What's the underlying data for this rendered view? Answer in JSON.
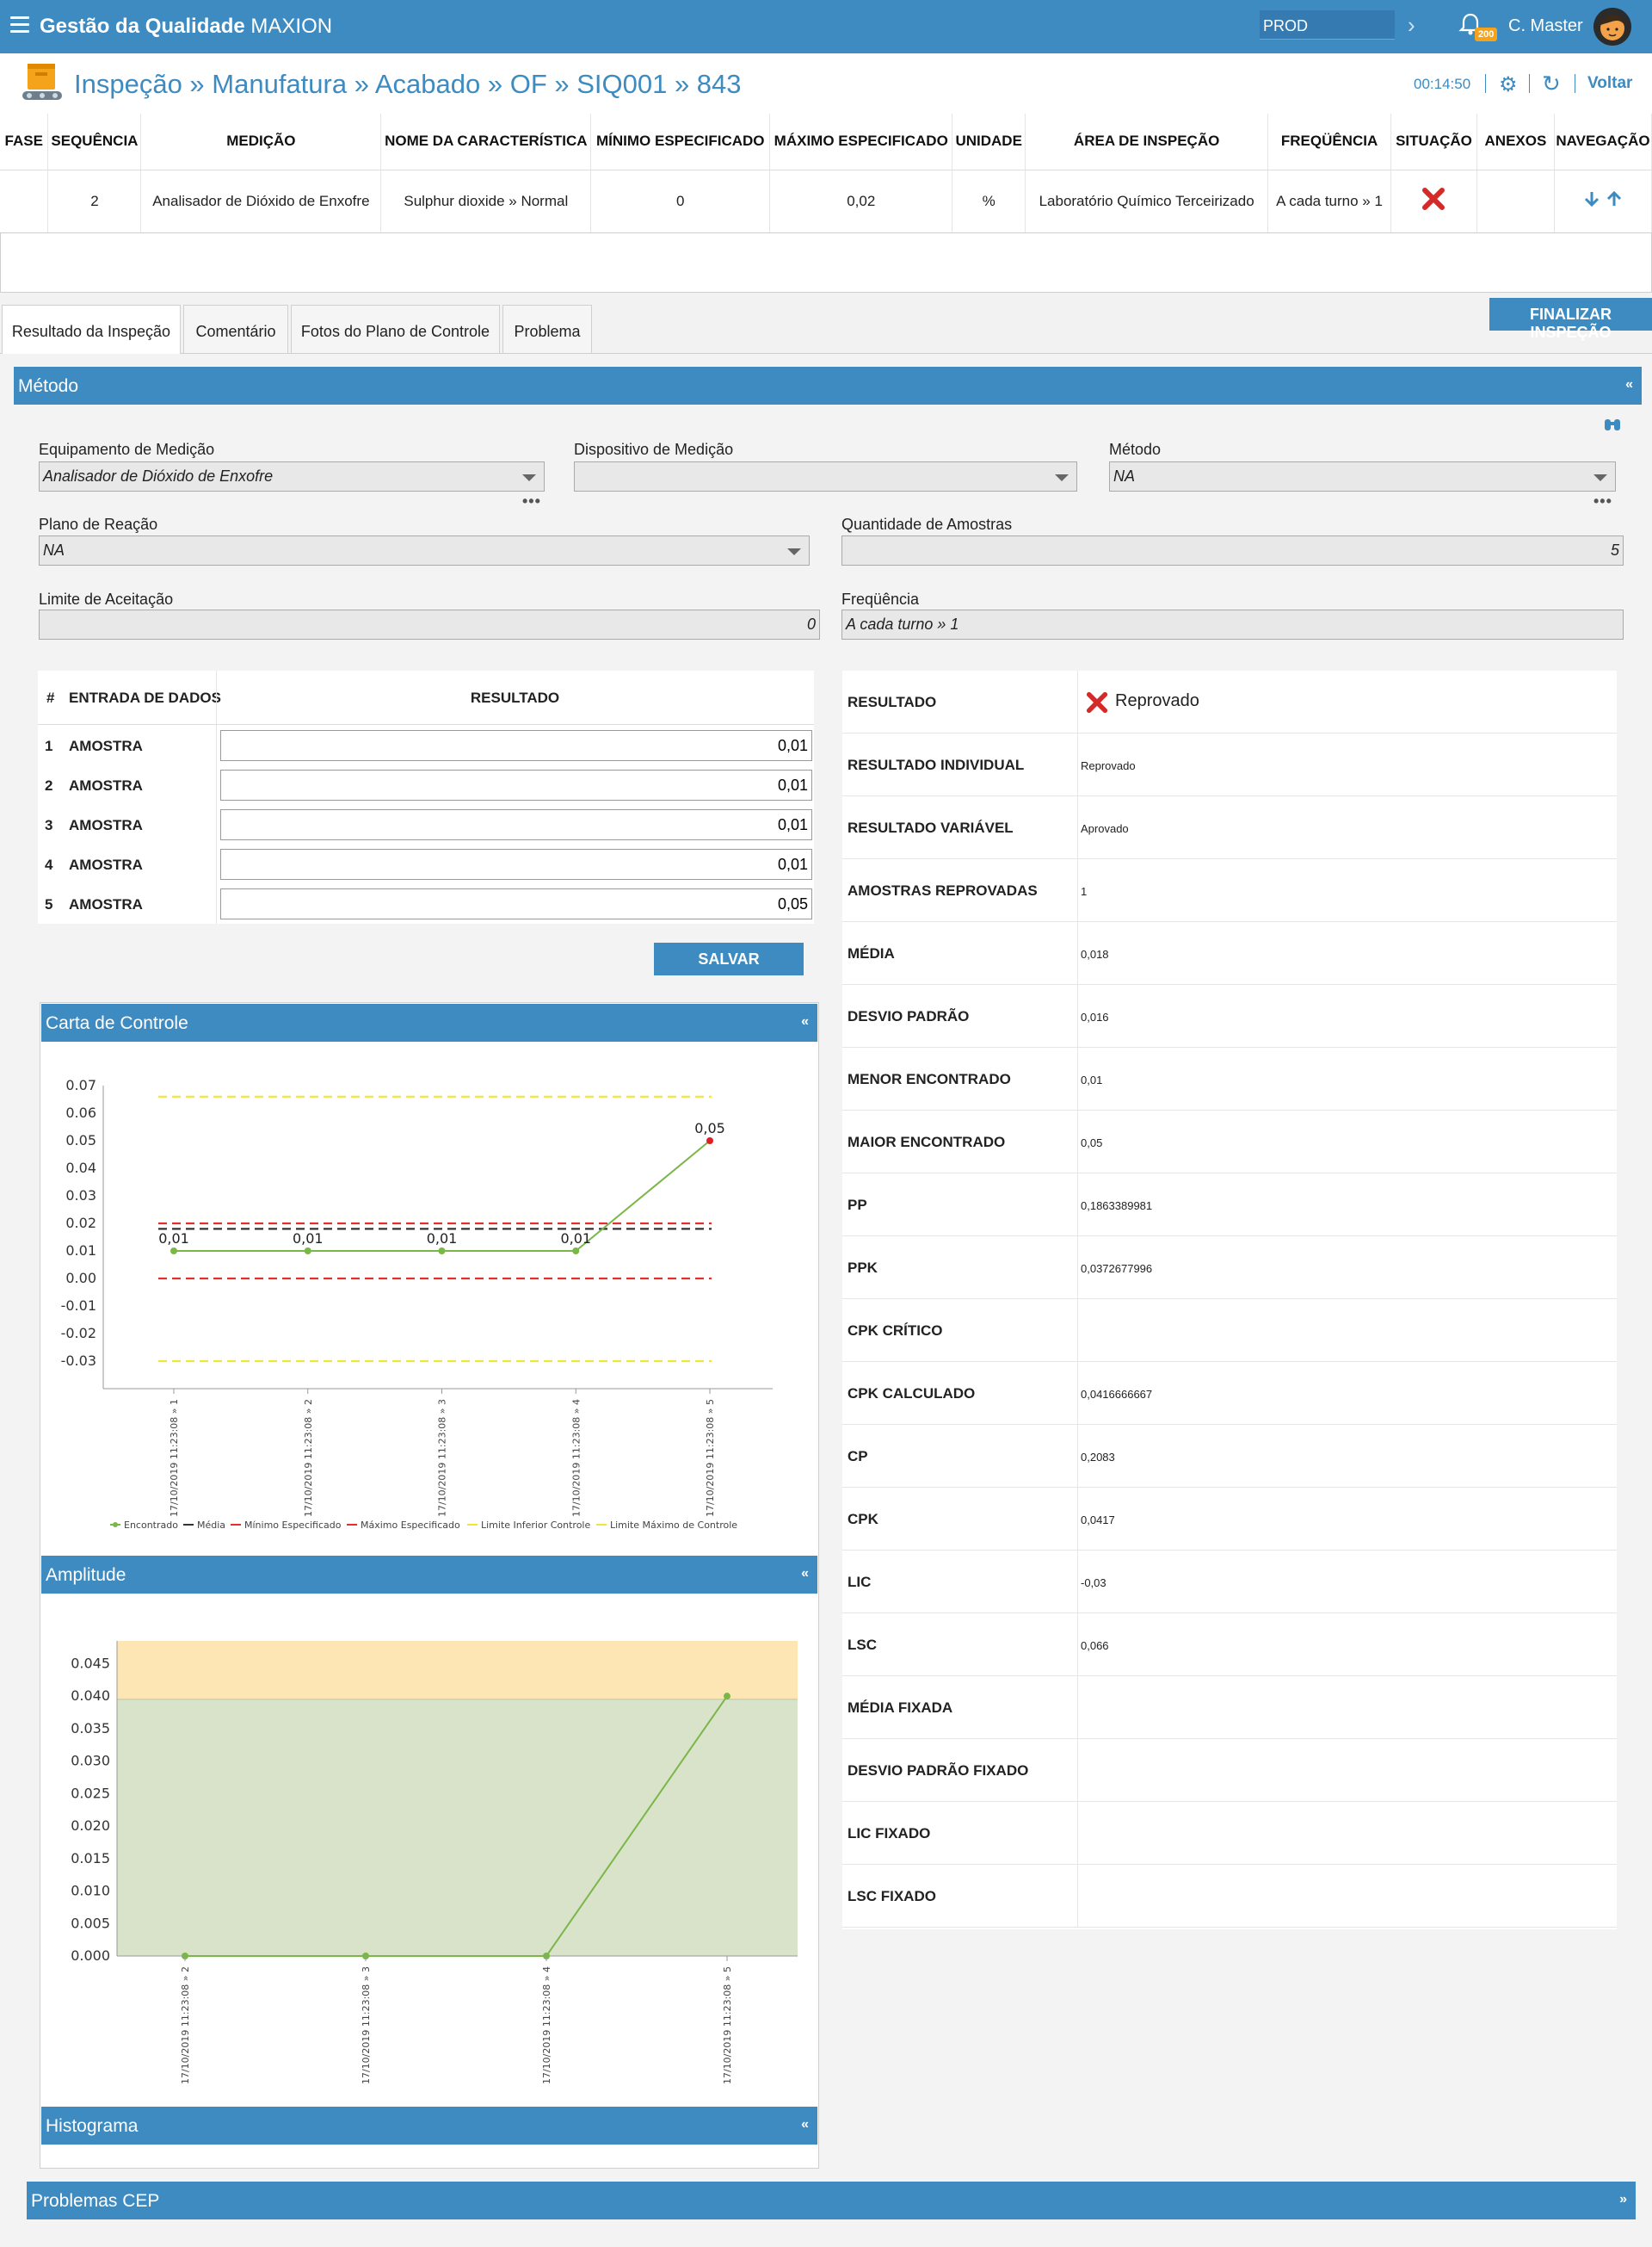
{
  "app": {
    "title_bold": "Gestão da Qualidade",
    "title_light": "MAXION",
    "environment": "PROD",
    "notifications": "200",
    "user": "C. Master"
  },
  "breadcrumb": {
    "text": "Inspeção » Manufatura » Acabado » OF » SIQ001 » 843",
    "timer": "00:14:50",
    "back": "Voltar"
  },
  "spec_table": {
    "headers": [
      "FASE",
      "SEQUÊNCIA",
      "MEDIÇÃO",
      "NOME DA CARACTERÍSTICA",
      "MÍNIMO ESPECIFICADO",
      "MÁXIMO ESPECIFICADO",
      "UNIDADE",
      "ÁREA DE INSPEÇÃO",
      "FREQÜÊNCIA",
      "SITUAÇÃO",
      "ANEXOS",
      "NAVEGAÇÃO"
    ],
    "row": {
      "fase": "",
      "sequencia": "2",
      "medicao": "Analisador de Dióxido de Enxofre",
      "caracteristica": "Sulphur dioxide » Normal",
      "minimo": "0",
      "maximo": "0,02",
      "unidade": "%",
      "area": "Laboratório Químico Terceirizado",
      "frequencia": "A cada turno » 1",
      "anexos": ""
    }
  },
  "tabs": [
    "Resultado da Inspeção",
    "Comentário",
    "Fotos do Plano de Controle",
    "Problema"
  ],
  "finalize_button": "FINALIZAR INSPEÇÃO",
  "metodo": {
    "title": "Método",
    "equipamento": {
      "label": "Equipamento de Medição",
      "value": "Analisador de Dióxido de Enxofre"
    },
    "dispositivo": {
      "label": "Dispositivo de Medição",
      "value": ""
    },
    "metodo": {
      "label": "Método",
      "value": "NA"
    },
    "plano_reacao": {
      "label": "Plano de Reação",
      "value": "NA"
    },
    "quantidade": {
      "label": "Quantidade de Amostras",
      "value": "5"
    },
    "limite": {
      "label": "Limite de Aceitação",
      "value": "0"
    },
    "frequencia": {
      "label": "Freqüência",
      "value": "A cada turno » 1"
    }
  },
  "entry": {
    "headers": {
      "num": "#",
      "entrada": "ENTRADA DE DADOS",
      "resultado": "RESULTADO"
    },
    "rows": [
      {
        "n": "1",
        "label": "AMOSTRA",
        "value": "0,01"
      },
      {
        "n": "2",
        "label": "AMOSTRA",
        "value": "0,01"
      },
      {
        "n": "3",
        "label": "AMOSTRA",
        "value": "0,01"
      },
      {
        "n": "4",
        "label": "AMOSTRA",
        "value": "0,01"
      },
      {
        "n": "5",
        "label": "AMOSTRA",
        "value": "0,05"
      }
    ],
    "save": "SALVAR"
  },
  "results": {
    "resultado": {
      "label": "RESULTADO",
      "value": "Reprovado"
    },
    "rows": [
      {
        "k": "RESULTADO INDIVIDUAL",
        "v": "Reprovado"
      },
      {
        "k": "RESULTADO VARIÁVEL",
        "v": "Aprovado"
      },
      {
        "k": "AMOSTRAS REPROVADAS",
        "v": "1"
      },
      {
        "k": "MÉDIA",
        "v": "0,018"
      },
      {
        "k": "DESVIO PADRÃO",
        "v": "0,016"
      },
      {
        "k": "MENOR ENCONTRADO",
        "v": "0,01"
      },
      {
        "k": "MAIOR ENCONTRADO",
        "v": "0,05"
      },
      {
        "k": "PP",
        "v": "0,1863389981"
      },
      {
        "k": "PPK",
        "v": "0,0372677996"
      },
      {
        "k": "CPK CRÍTICO",
        "v": ""
      },
      {
        "k": "CPK CALCULADO",
        "v": "0,0416666667"
      },
      {
        "k": "CP",
        "v": "0,2083"
      },
      {
        "k": "CPK",
        "v": "0,0417"
      },
      {
        "k": "LIC",
        "v": "-0,03"
      },
      {
        "k": "LSC",
        "v": "0,066"
      },
      {
        "k": "MÉDIA FIXADA",
        "v": ""
      },
      {
        "k": "DESVIO PADRÃO FIXADO",
        "v": ""
      },
      {
        "k": "LIC FIXADO",
        "v": ""
      },
      {
        "k": "LSC FIXADO",
        "v": ""
      }
    ]
  },
  "panels": {
    "carta": "Carta de Controle",
    "amplitude": "Amplitude",
    "histograma": "Histograma",
    "problemas": "Problemas CEP"
  },
  "colors": {
    "primary": "#3d8bc1",
    "series": "#7ab648",
    "spec_limit": "#e03030",
    "control_limit": "#f2e53a",
    "mean": "#333333",
    "amplitude_fill": "#d9e3c9",
    "amplitude_over": "#fde6b3"
  },
  "chart_data": [
    {
      "type": "line",
      "x": [
        "17/10/2019 11:23:08 » 1",
        "17/10/2019 11:23:08 » 2",
        "17/10/2019 11:23:08 » 3",
        "17/10/2019 11:23:08 » 4",
        "17/10/2019 11:23:08 » 5"
      ],
      "series": [
        {
          "name": "Encontrado",
          "values": [
            0.01,
            0.01,
            0.01,
            0.01,
            0.05
          ],
          "labels": [
            "0,01",
            "0,01",
            "0,01",
            "0,01",
            "0,05"
          ]
        },
        {
          "name": "Média",
          "values": [
            0.018,
            0.018,
            0.018,
            0.018,
            0.018
          ]
        },
        {
          "name": "Mínimo Especificado",
          "values": [
            0,
            0,
            0,
            0,
            0
          ]
        },
        {
          "name": "Máximo Especificado",
          "values": [
            0.02,
            0.02,
            0.02,
            0.02,
            0.02
          ]
        },
        {
          "name": "Limite Inferior Controle",
          "values": [
            -0.03,
            -0.03,
            -0.03,
            -0.03,
            -0.03
          ]
        },
        {
          "name": "Limite Máximo de Controle",
          "values": [
            0.066,
            0.066,
            0.066,
            0.066,
            0.066
          ]
        }
      ],
      "yticks": [
        "0.07",
        "0.06",
        "0.05",
        "0.04",
        "0.03",
        "0.02",
        "0.01",
        "0.00",
        "-0.01",
        "-0.02",
        "-0.03"
      ],
      "ylim": [
        -0.04,
        0.07
      ],
      "grid": false
    },
    {
      "type": "line",
      "x": [
        "17/10/2019 11:23:08 » 2",
        "17/10/2019 11:23:08 » 3",
        "17/10/2019 11:23:08 » 4",
        "17/10/2019 11:23:08 » 5"
      ],
      "series": [
        {
          "values": [
            0,
            0,
            0,
            0.04
          ]
        }
      ],
      "yticks": [
        "0.045",
        "0.040",
        "0.035",
        "0.030",
        "0.025",
        "0.020",
        "0.015",
        "0.010",
        "0.005",
        "0.000"
      ],
      "ylim": [
        0,
        0.0485
      ],
      "band_threshold": 0.0395,
      "grid": false
    }
  ]
}
